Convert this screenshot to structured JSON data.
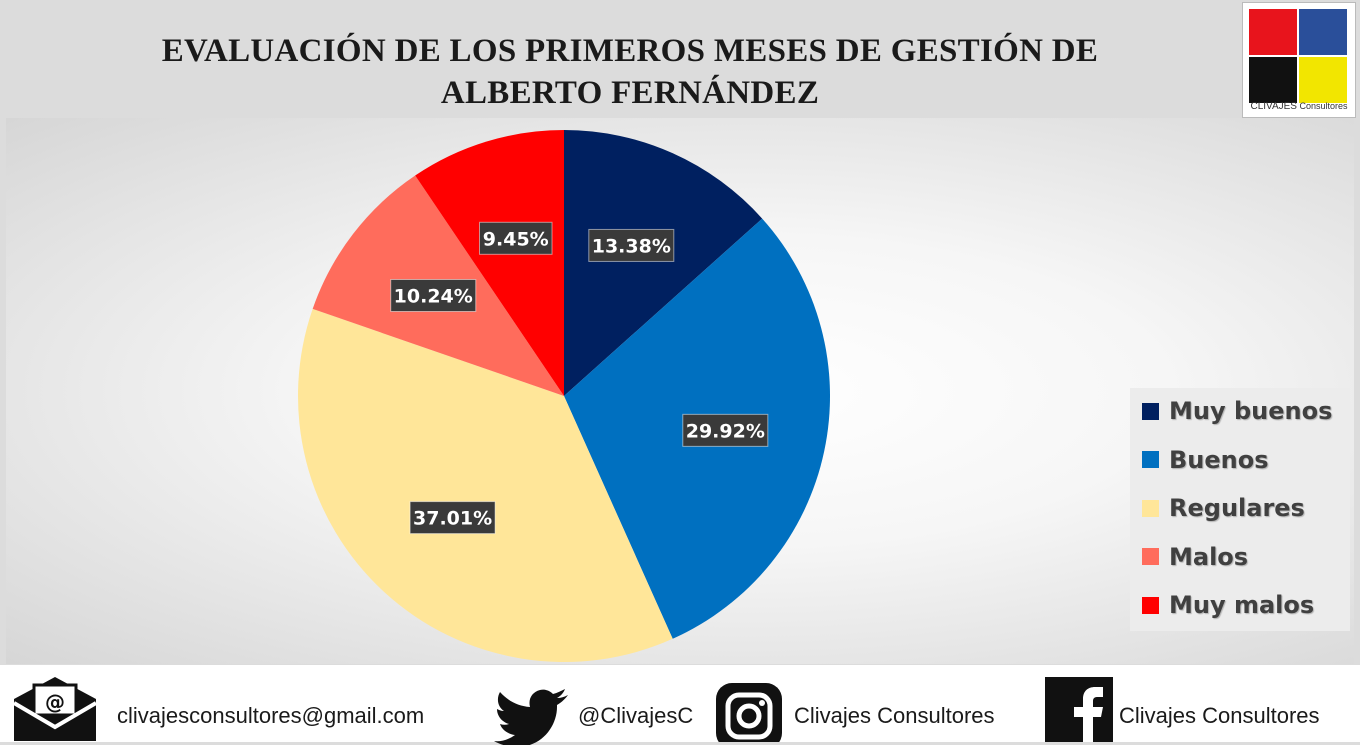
{
  "chart_data": {
    "type": "pie",
    "title": "EVALUACIÓN DE LOS PRIMEROS MESES DE GESTIÓN DE ALBERTO FERNÁNDEZ",
    "title_lines": [
      "EVALUACIÓN DE LOS PRIMEROS MESES DE GESTIÓN DE",
      "ALBERTO FERNÁNDEZ"
    ],
    "categories": [
      "Muy buenos",
      "Buenos",
      "Regulares",
      "Malos",
      "Muy malos"
    ],
    "values": [
      13.38,
      29.92,
      37.01,
      10.24,
      9.45
    ],
    "labels": [
      "13.38%",
      "29.92%",
      "37.01%",
      "10.24%",
      "9.45%"
    ],
    "colors": [
      "#002060",
      "#0070c0",
      "#ffe699",
      "#ff6c5c",
      "#ff0000"
    ],
    "legend_position": "right"
  },
  "logo": {
    "text": "CLIVAJES",
    "subtext": "Consultores",
    "colors": [
      "#e8141c",
      "#2a4f9a",
      "#111111",
      "#f2e600"
    ]
  },
  "footer": {
    "email": "clivajesconsultores@gmail.com",
    "twitter": "@ClivajesC",
    "instagram": "Clivajes Consultores",
    "facebook": "Clivajes Consultores",
    "icons": [
      "email-icon",
      "twitter-icon",
      "instagram-icon",
      "facebook-icon"
    ]
  }
}
